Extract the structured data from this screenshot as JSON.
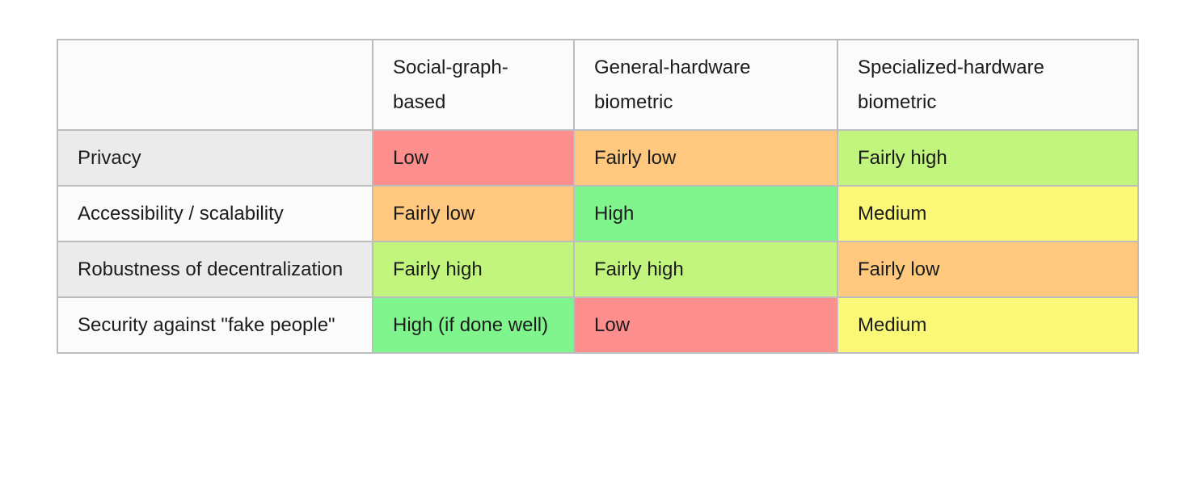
{
  "table": {
    "columns": [
      {
        "label": ""
      },
      {
        "label": "Social-graph-based"
      },
      {
        "label": "General-hardware biometric"
      },
      {
        "label": "Specialized-hardware biometric"
      }
    ],
    "rows": [
      {
        "label": "Privacy",
        "cells": [
          {
            "text": "Low",
            "level": "low"
          },
          {
            "text": "Fairly low",
            "level": "fairly_low"
          },
          {
            "text": "Fairly high",
            "level": "fairly_high"
          }
        ]
      },
      {
        "label": "Accessibility / scalability",
        "cells": [
          {
            "text": "Fairly low",
            "level": "fairly_low"
          },
          {
            "text": "High",
            "level": "high"
          },
          {
            "text": "Medium",
            "level": "medium"
          }
        ]
      },
      {
        "label": "Robustness of decentralization",
        "cells": [
          {
            "text": "Fairly high",
            "level": "fairly_high"
          },
          {
            "text": "Fairly high",
            "level": "fairly_high"
          },
          {
            "text": "Fairly low",
            "level": "fairly_low"
          }
        ]
      },
      {
        "label": "Security against \"fake people\"",
        "cells": [
          {
            "text": "High (if done well)",
            "level": "high"
          },
          {
            "text": "Low",
            "level": "low"
          },
          {
            "text": "Medium",
            "level": "medium"
          }
        ]
      }
    ]
  },
  "colors": {
    "low": "#fc8e8e",
    "fairly_low": "#fec87e",
    "medium": "#fbf878",
    "fairly_high": "#c1f57e",
    "high": "#80f58d",
    "row_stripe": "#ebebeb",
    "row_plain": "#fbfbfb",
    "border": "#bdbdbd",
    "text": "#1c1c1c"
  }
}
